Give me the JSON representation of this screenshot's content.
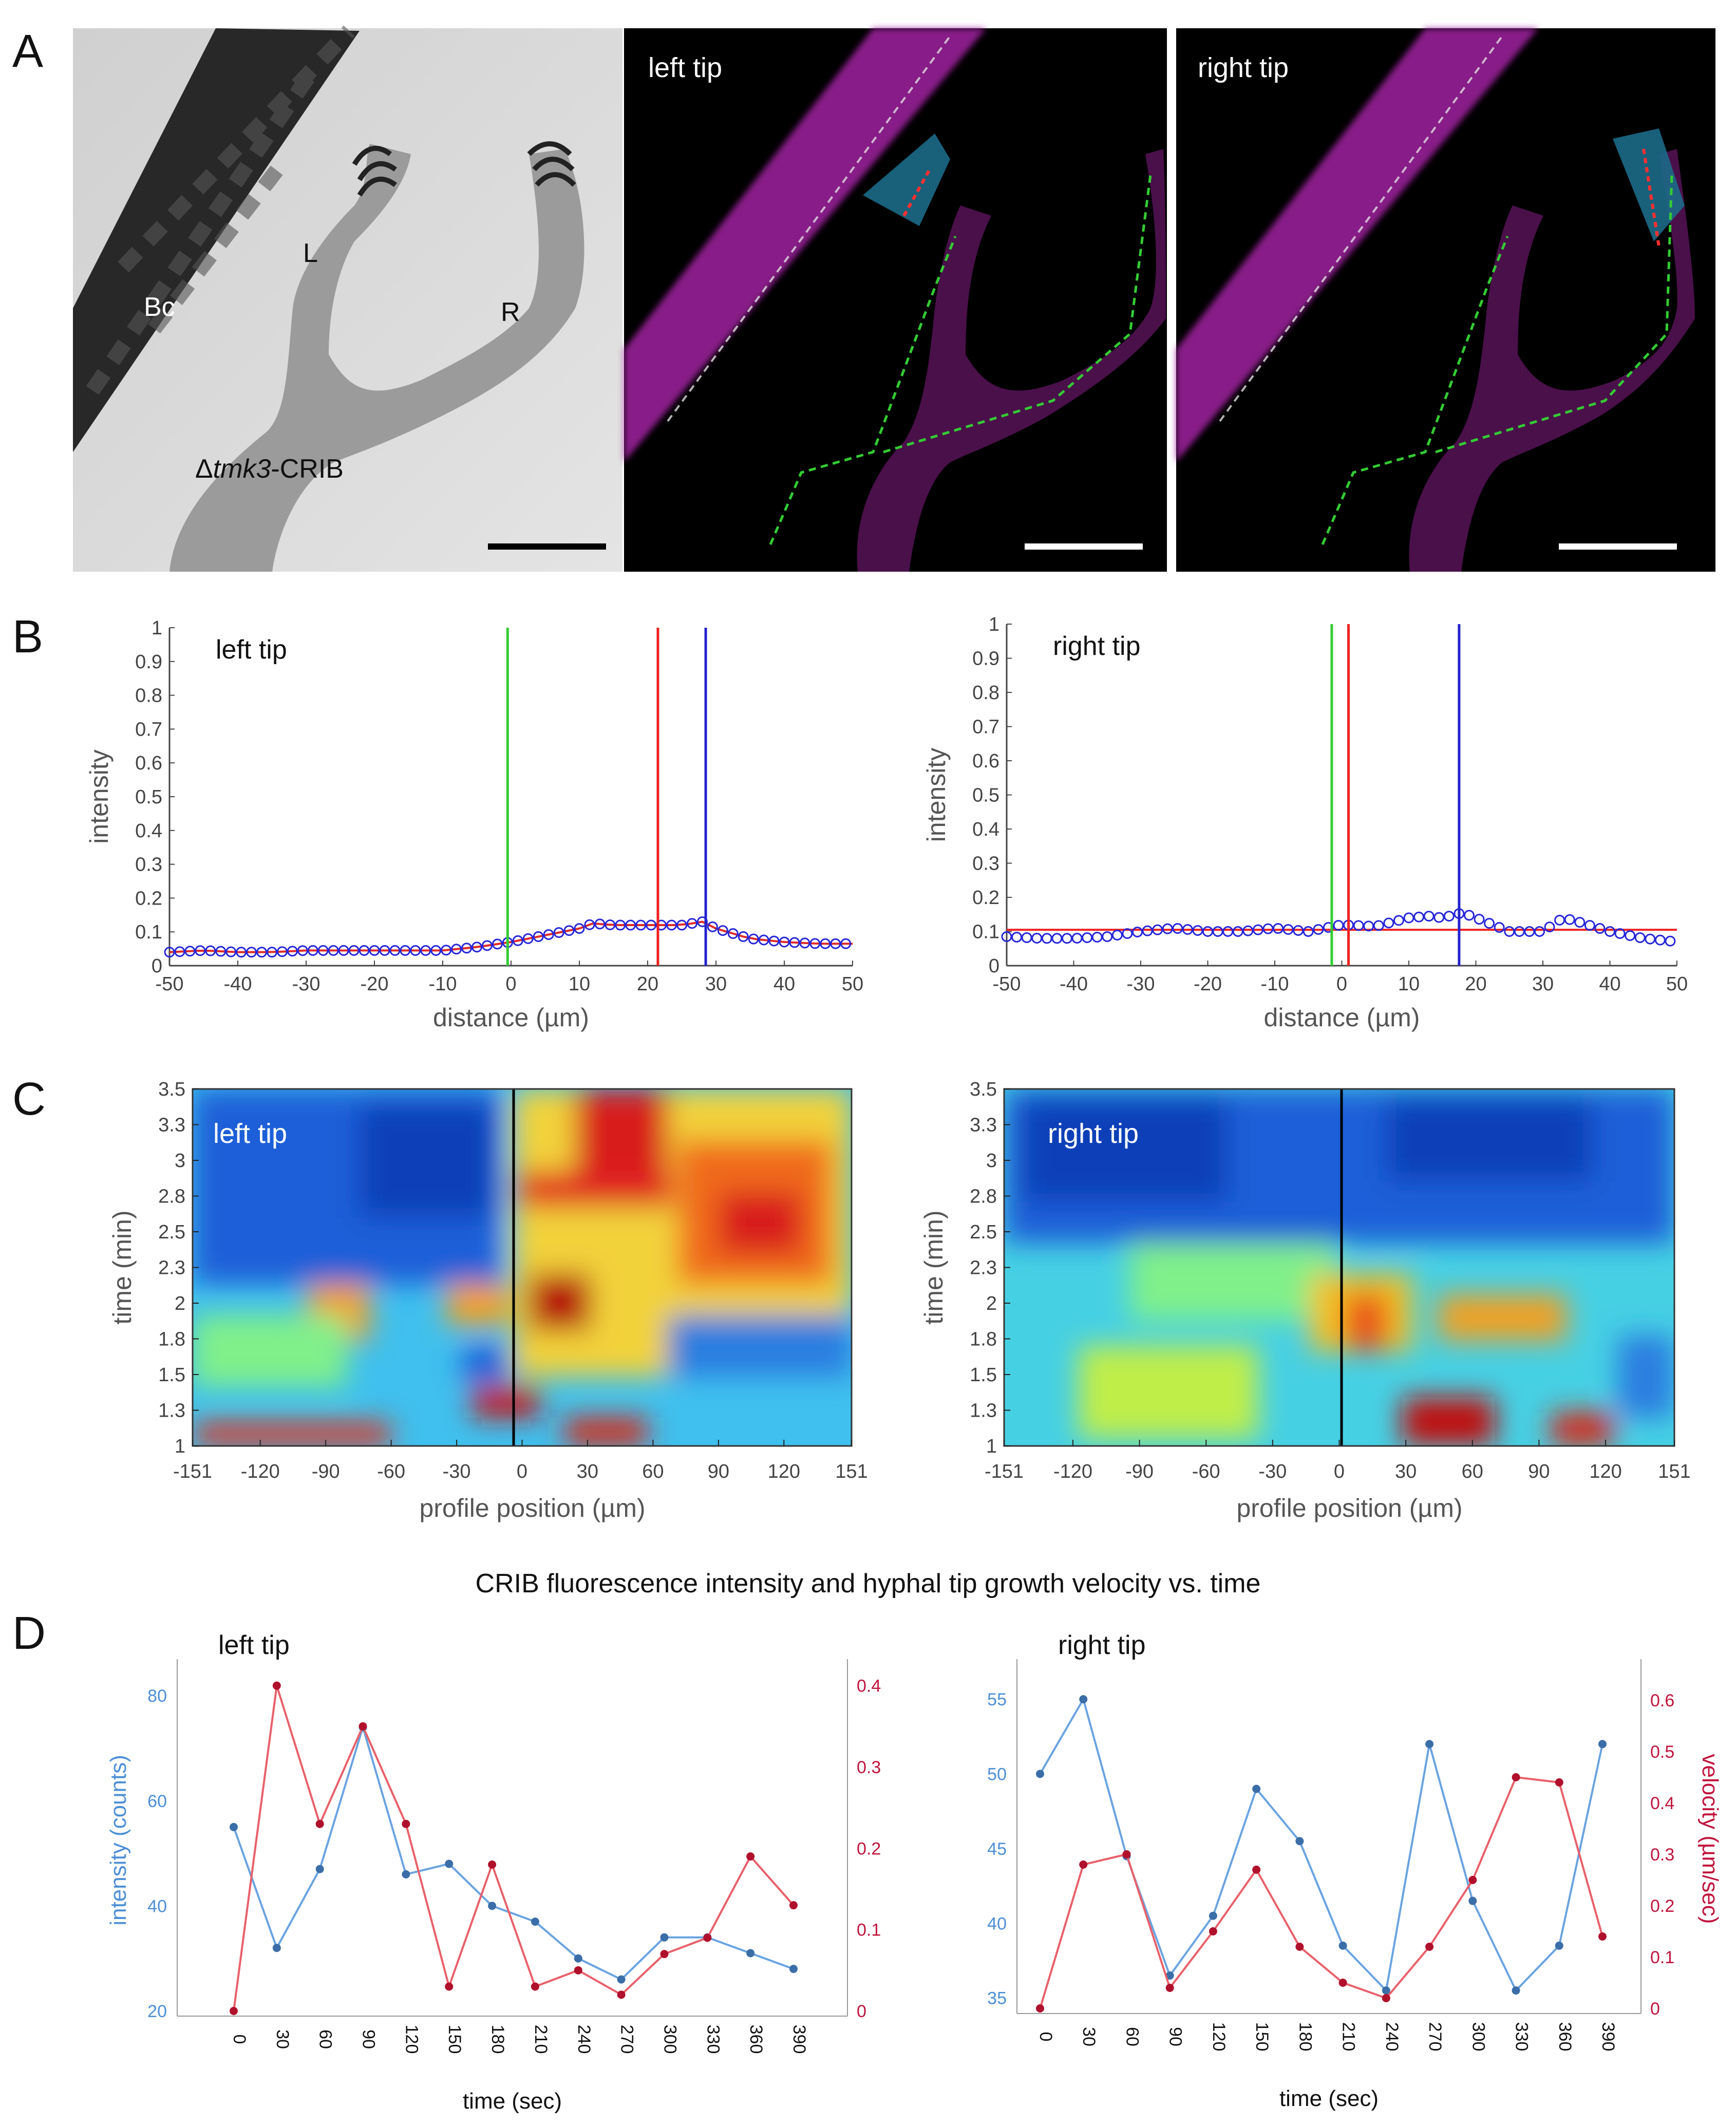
{
  "panels": {
    "a": "A",
    "b": "B",
    "c": "C",
    "d": "D"
  },
  "panel_a": {
    "labels": {
      "bc": "Bc",
      "l": "L",
      "r": "R",
      "strain_prefix": "Δ",
      "strain_gene": "tmk3",
      "strain_suffix": "-CRIB"
    },
    "left_title": "left tip",
    "right_title": "right tip"
  },
  "chart_data": [
    {
      "id": "B-left",
      "type": "scatter",
      "title": "left tip",
      "xlabel": "distance (µm)",
      "ylabel": "intensity",
      "xlim": [
        -50,
        50
      ],
      "ylim": [
        0,
        1
      ],
      "xticks": [
        "-50",
        "-40",
        "-30",
        "-20",
        "-10",
        "0",
        "10",
        "20",
        "30",
        "40",
        "50"
      ],
      "yticks": [
        "0",
        "0.1",
        "0.2",
        "0.3",
        "0.4",
        "0.5",
        "0.6",
        "0.7",
        "0.8",
        "0.9",
        "1"
      ],
      "series": [
        {
          "name": "profile",
          "x": [
            -50,
            -45,
            -40,
            -35,
            -30,
            -25,
            -20,
            -15,
            -10,
            -5,
            0,
            5,
            10,
            12,
            15,
            20,
            25,
            28,
            30,
            35,
            40,
            45,
            50
          ],
          "y": [
            0.04,
            0.045,
            0.04,
            0.04,
            0.045,
            0.045,
            0.045,
            0.045,
            0.045,
            0.055,
            0.07,
            0.09,
            0.11,
            0.125,
            0.12,
            0.12,
            0.12,
            0.13,
            0.11,
            0.08,
            0.07,
            0.065,
            0.065
          ]
        }
      ],
      "vlines": [
        {
          "x": -0.5,
          "color": "#33cc33"
        },
        {
          "x": 21.5,
          "color": "#ee2222"
        },
        {
          "x": 28.5,
          "color": "#2222cc"
        }
      ]
    },
    {
      "id": "B-right",
      "type": "scatter",
      "title": "right tip",
      "xlabel": "distance (µm)",
      "ylabel": "intensity",
      "xlim": [
        -50,
        50
      ],
      "ylim": [
        0,
        1
      ],
      "xticks": [
        "-50",
        "-40",
        "-30",
        "-20",
        "-10",
        "0",
        "10",
        "20",
        "30",
        "40",
        "50"
      ],
      "yticks": [
        "0",
        "0.1",
        "0.2",
        "0.3",
        "0.4",
        "0.5",
        "0.6",
        "0.7",
        "0.8",
        "0.9",
        "1"
      ],
      "series": [
        {
          "name": "profile",
          "x": [
            -50,
            -45,
            -40,
            -35,
            -30,
            -25,
            -20,
            -15,
            -10,
            -5,
            0,
            5,
            10,
            13,
            15,
            18,
            20,
            25,
            30,
            33,
            35,
            40,
            45,
            50
          ],
          "y": [
            0.085,
            0.08,
            0.08,
            0.085,
            0.1,
            0.11,
            0.1,
            0.1,
            0.11,
            0.1,
            0.12,
            0.115,
            0.14,
            0.145,
            0.14,
            0.155,
            0.14,
            0.1,
            0.1,
            0.14,
            0.13,
            0.1,
            0.08,
            0.07
          ]
        }
      ],
      "hlines": [
        {
          "y": 0.105,
          "color": "#ee2222"
        }
      ],
      "vlines": [
        {
          "x": -1.5,
          "color": "#33cc33"
        },
        {
          "x": 1.0,
          "color": "#ee2222"
        },
        {
          "x": 17.5,
          "color": "#2222cc"
        }
      ]
    },
    {
      "id": "C-left",
      "type": "heatmap",
      "title": "left tip",
      "xlabel": "profile position (µm)",
      "ylabel": "time (min)",
      "xticks": [
        "-151",
        "-120",
        "-90",
        "-60",
        "-30",
        "0",
        "30",
        "60",
        "90",
        "120",
        "151"
      ],
      "yticks": [
        "1",
        "1.3",
        "1.5",
        "1.8",
        "2",
        "2.3",
        "2.5",
        "2.8",
        "3",
        "3.3",
        "3.5"
      ]
    },
    {
      "id": "C-right",
      "type": "heatmap",
      "title": "right tip",
      "xlabel": "profile position (µm)",
      "ylabel": "time (min)",
      "xticks": [
        "-151",
        "-120",
        "-90",
        "-60",
        "-30",
        "0",
        "30",
        "60",
        "90",
        "120",
        "151"
      ],
      "yticks": [
        "1",
        "1.3",
        "1.5",
        "1.8",
        "2",
        "2.3",
        "2.5",
        "2.8",
        "3",
        "3.3",
        "3.5"
      ]
    },
    {
      "id": "D-left",
      "type": "line",
      "title": "left tip",
      "suptitle": "CRIB fluorescence intensity and hyphal tip growth velocity vs. time",
      "xlabel": "time (sec)",
      "x": [
        0,
        30,
        60,
        90,
        120,
        150,
        180,
        210,
        240,
        270,
        300,
        330,
        360,
        390
      ],
      "xticks": [
        "0",
        "30",
        "60",
        "90",
        "120",
        "150",
        "180",
        "210",
        "240",
        "270",
        "300",
        "330",
        "360",
        "390"
      ],
      "left_axis": {
        "label": "intensity (counts)",
        "ticks": [
          "20",
          "40",
          "60",
          "80"
        ],
        "ylim": [
          20,
          85
        ]
      },
      "right_axis": {
        "ticks": [
          "0",
          "0.1",
          "0.2",
          "0.3",
          "0.4"
        ],
        "ylim": [
          0,
          0.42
        ]
      },
      "series": [
        {
          "name": "intensity",
          "axis": "left",
          "color": "#6aa3e0",
          "values": [
            55,
            32,
            47,
            74,
            46,
            48,
            40,
            37,
            30,
            26,
            34,
            34,
            31,
            28
          ]
        },
        {
          "name": "velocity",
          "axis": "right",
          "color": "#e8606a",
          "values": [
            0,
            0.4,
            0.23,
            0.35,
            0.23,
            0.03,
            0.18,
            0.03,
            0.05,
            0.02,
            0.07,
            0.09,
            0.19,
            0.13
          ]
        }
      ]
    },
    {
      "id": "D-right",
      "type": "line",
      "title": "right tip",
      "xlabel": "time (sec)",
      "x": [
        0,
        30,
        60,
        90,
        120,
        150,
        180,
        210,
        240,
        270,
        300,
        330,
        360,
        390
      ],
      "xticks": [
        "0",
        "30",
        "60",
        "90",
        "120",
        "150",
        "180",
        "210",
        "240",
        "270",
        "300",
        "330",
        "360",
        "390"
      ],
      "left_axis": {
        "ticks": [
          "35",
          "40",
          "45",
          "50",
          "55"
        ],
        "ylim": [
          34.3,
          57
        ]
      },
      "right_axis": {
        "label": "velocity (µm/sec)",
        "ticks": [
          "0",
          "0.1",
          "0.2",
          "0.3",
          "0.4",
          "0.5",
          "0.6"
        ],
        "ylim": [
          0,
          0.66
        ]
      },
      "series": [
        {
          "name": "intensity",
          "axis": "left",
          "color": "#6aa3e0",
          "values": [
            50,
            55,
            44.5,
            36.5,
            40.5,
            49,
            45.5,
            38.5,
            35.5,
            52,
            41.5,
            35.5,
            38.5,
            52
          ]
        },
        {
          "name": "velocity",
          "axis": "right",
          "color": "#e8606a",
          "values": [
            0,
            0.28,
            0.3,
            0.04,
            0.15,
            0.27,
            0.12,
            0.05,
            0.02,
            0.12,
            0.25,
            0.45,
            0.44,
            0.14
          ]
        }
      ]
    }
  ]
}
